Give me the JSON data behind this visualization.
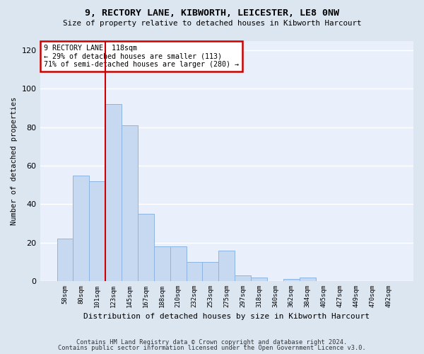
{
  "title1": "9, RECTORY LANE, KIBWORTH, LEICESTER, LE8 0NW",
  "title2": "Size of property relative to detached houses in Kibworth Harcourt",
  "xlabel": "Distribution of detached houses by size in Kibworth Harcourt",
  "ylabel": "Number of detached properties",
  "footer1": "Contains HM Land Registry data © Crown copyright and database right 2024.",
  "footer2": "Contains public sector information licensed under the Open Government Licence v3.0.",
  "bar_labels": [
    "58sqm",
    "80sqm",
    "101sqm",
    "123sqm",
    "145sqm",
    "167sqm",
    "188sqm",
    "210sqm",
    "232sqm",
    "253sqm",
    "275sqm",
    "297sqm",
    "318sqm",
    "340sqm",
    "362sqm",
    "384sqm",
    "405sqm",
    "427sqm",
    "449sqm",
    "470sqm",
    "492sqm"
  ],
  "bar_values": [
    22,
    55,
    52,
    92,
    81,
    35,
    18,
    18,
    10,
    10,
    16,
    3,
    2,
    0,
    1,
    2,
    0,
    0,
    0,
    0,
    0
  ],
  "bar_color": "#c6d9f0",
  "bar_edge_color": "#8db4e2",
  "vline_color": "#cc0000",
  "annotation_line1": "9 RECTORY LANE: 118sqm",
  "annotation_line2": "← 29% of detached houses are smaller (113)",
  "annotation_line3": "71% of semi-detached houses are larger (280) →",
  "annotation_box_color": "#ffffff",
  "annotation_box_edge": "#cc0000",
  "ylim": [
    0,
    125
  ],
  "yticks": [
    0,
    20,
    40,
    60,
    80,
    100,
    120
  ],
  "bg_color": "#dce6f1",
  "plot_bg_color": "#eaf0fb",
  "grid_color": "#ffffff",
  "vline_xindex": 2.5
}
